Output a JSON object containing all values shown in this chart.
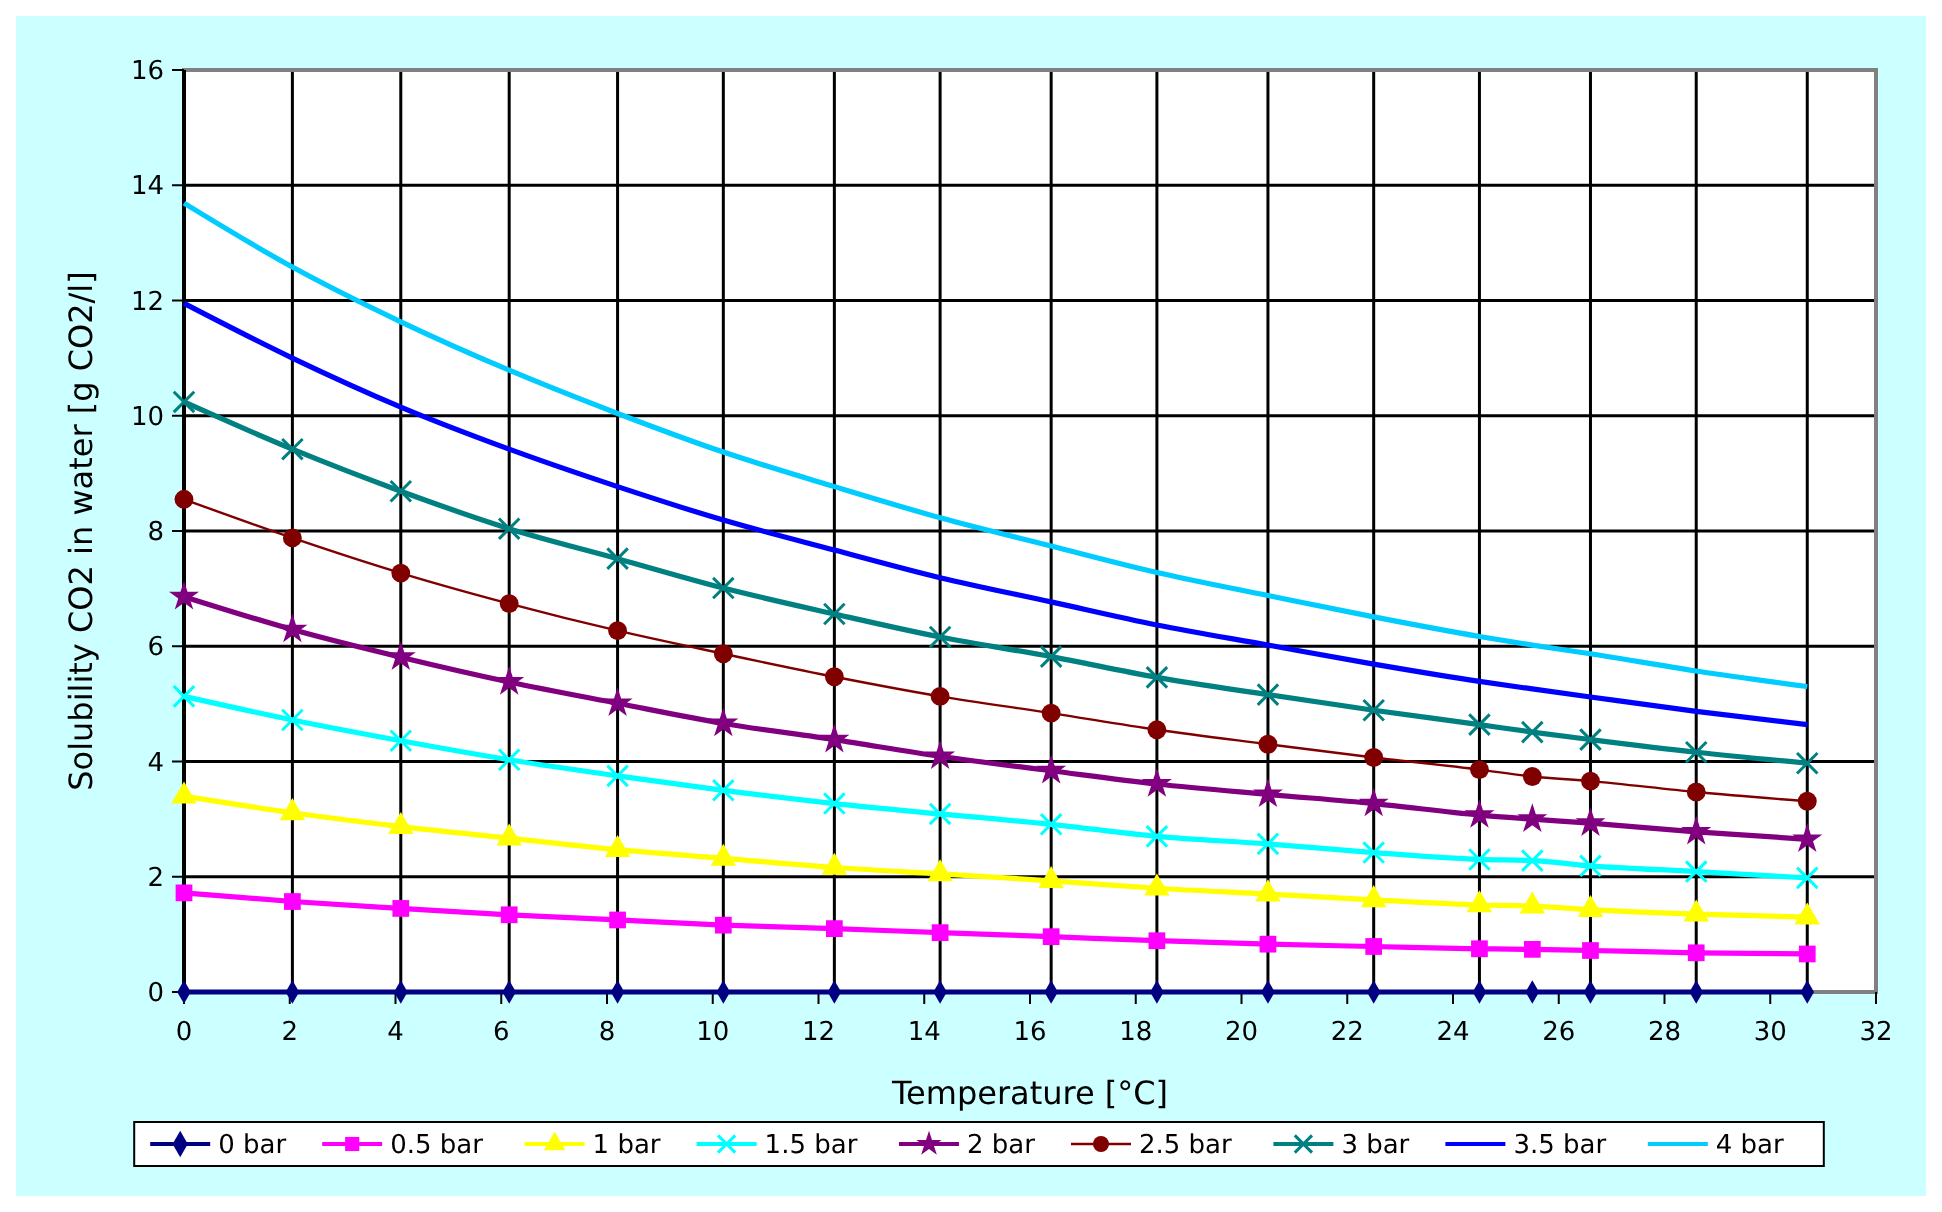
{
  "chart_data": {
    "type": "line",
    "xlabel": "Temperature  [°C]",
    "ylabel": "Solubility CO2 in water  [g CO2/l]",
    "x": [
      0,
      2.05,
      4.1,
      6.15,
      8.2,
      10.2,
      12.3,
      14.3,
      16.4,
      18.4,
      20.5,
      22.5,
      24.5,
      25.5,
      26.6,
      28.6,
      30.7
    ],
    "xlim": [
      0,
      32
    ],
    "xticks": [
      0,
      2,
      4,
      6,
      8,
      10,
      12,
      14,
      16,
      18,
      20,
      22,
      24,
      26,
      28,
      30,
      32
    ],
    "ylim": [
      0,
      16
    ],
    "yticks": [
      0,
      2,
      4,
      6,
      8,
      10,
      12,
      14,
      16
    ],
    "grid": "y",
    "legend": "bottom",
    "line_style": "solid",
    "ref_lines": [
      {
        "axis": "x",
        "value": 2.05,
        "color": "#000000"
      },
      {
        "axis": "x",
        "value": 4.1,
        "color": "#000000"
      },
      {
        "axis": "x",
        "value": 6.15,
        "color": "#000000"
      },
      {
        "axis": "x",
        "value": 8.2,
        "color": "#000000"
      },
      {
        "axis": "x",
        "value": 10.2,
        "color": "#000000"
      },
      {
        "axis": "x",
        "value": 12.3,
        "color": "#000000"
      },
      {
        "axis": "x",
        "value": 14.3,
        "color": "#000000"
      },
      {
        "axis": "x",
        "value": 16.4,
        "color": "#000000"
      },
      {
        "axis": "x",
        "value": 18.4,
        "color": "#000000"
      },
      {
        "axis": "x",
        "value": 20.5,
        "color": "#000000"
      },
      {
        "axis": "x",
        "value": 22.5,
        "color": "#000000"
      },
      {
        "axis": "x",
        "value": 24.5,
        "color": "#000000"
      },
      {
        "axis": "x",
        "value": 26.6,
        "color": "#000000"
      },
      {
        "axis": "x",
        "value": 28.6,
        "color": "#000000"
      },
      {
        "axis": "x",
        "value": 30.7,
        "color": "#000000"
      }
    ],
    "series": [
      {
        "name": "0 bar",
        "color": "#000080",
        "marker": "diamond",
        "values": [
          0,
          0,
          0,
          0,
          0,
          0,
          0,
          0,
          0,
          0,
          0,
          0,
          0,
          0,
          0,
          0,
          0
        ]
      },
      {
        "name": "0.5 bar",
        "color": "#ff00ff",
        "marker": "square",
        "values": [
          1.72,
          1.57,
          1.45,
          1.34,
          1.25,
          1.16,
          1.1,
          1.03,
          0.96,
          0.89,
          0.83,
          0.79,
          0.75,
          0.74,
          0.72,
          0.68,
          0.66
        ]
      },
      {
        "name": "1 bar",
        "color": "#ffff00",
        "marker": "triangle",
        "values": [
          3.4,
          3.11,
          2.87,
          2.67,
          2.47,
          2.32,
          2.16,
          2.05,
          1.93,
          1.8,
          1.7,
          1.6,
          1.51,
          1.49,
          1.43,
          1.35,
          1.3
        ]
      },
      {
        "name": "1.5 bar",
        "color": "#00ffff",
        "marker": "cross",
        "values": [
          5.13,
          4.72,
          4.36,
          4.03,
          3.75,
          3.5,
          3.27,
          3.09,
          2.91,
          2.7,
          2.57,
          2.42,
          2.3,
          2.28,
          2.19,
          2.09,
          1.98
        ]
      },
      {
        "name": "2 bar",
        "color": "#800080",
        "marker": "star",
        "values": [
          6.86,
          6.29,
          5.81,
          5.38,
          5.01,
          4.66,
          4.38,
          4.09,
          3.84,
          3.61,
          3.43,
          3.27,
          3.07,
          3,
          2.93,
          2.78,
          2.65
        ]
      },
      {
        "name": "2.5 bar",
        "color": "#800000",
        "marker": "circle",
        "values": [
          8.55,
          7.88,
          7.27,
          6.74,
          6.27,
          5.87,
          5.47,
          5.13,
          4.84,
          4.55,
          4.3,
          4.07,
          3.86,
          3.74,
          3.66,
          3.47,
          3.31
        ]
      },
      {
        "name": "3 bar",
        "color": "#008080",
        "marker": "cross",
        "values": [
          10.24,
          9.42,
          8.69,
          8.04,
          7.52,
          7.01,
          6.56,
          6.16,
          5.82,
          5.46,
          5.16,
          4.89,
          4.64,
          4.51,
          4.38,
          4.16,
          3.97
        ]
      },
      {
        "name": "3.5 bar",
        "color": "#0000ff",
        "marker": "none",
        "values": [
          11.95,
          11,
          10.15,
          9.42,
          8.77,
          8.19,
          7.67,
          7.19,
          6.77,
          6.37,
          6.02,
          5.69,
          5.39,
          5.26,
          5.12,
          4.87,
          4.64
        ]
      },
      {
        "name": "4 bar",
        "color": "#00ccff",
        "marker": "none",
        "values": [
          13.69,
          12.58,
          11.63,
          10.79,
          10.04,
          9.37,
          8.77,
          8.23,
          7.74,
          7.28,
          6.88,
          6.51,
          6.17,
          6.02,
          5.87,
          5.57,
          5.3
        ]
      }
    ]
  }
}
